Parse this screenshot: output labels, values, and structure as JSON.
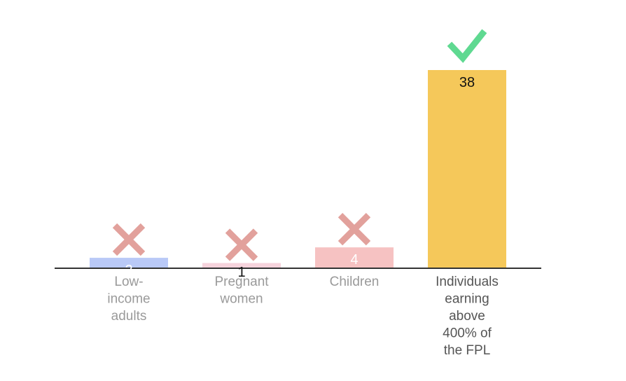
{
  "chart_data": {
    "type": "bar",
    "title": "",
    "xlabel": "",
    "ylabel": "",
    "categories": [
      "Low-income adults",
      "Pregnant women",
      "Children",
      "Individuals earning above 400% of the FPL"
    ],
    "category_lines": [
      [
        "Low-",
        "income",
        "adults"
      ],
      [
        "Pregnant",
        "women"
      ],
      [
        "Children"
      ],
      [
        "Individuals",
        "earning",
        "above",
        "400% of",
        "the FPL"
      ]
    ],
    "values": [
      2,
      1,
      4,
      38
    ],
    "value_labels": [
      "2",
      "1",
      "4",
      "38"
    ],
    "markers": [
      "cross-icon",
      "cross-icon",
      "cross-icon",
      "check-icon"
    ],
    "ylim": [
      0,
      38
    ],
    "grid": false,
    "colors": {
      "bars": [
        "#b9c9f7",
        "#f6d3dc",
        "#f6c2c2",
        "#f5c85a"
      ],
      "category_text": [
        "#9a9a9a",
        "#9a9a9a",
        "#9a9a9a",
        "#555555"
      ],
      "value_text": [
        "#ffffff",
        "#111111",
        "#ffffff",
        "#111111"
      ],
      "cross": "#e2a19c",
      "check": "#5fd991",
      "axis": "#333333"
    }
  }
}
